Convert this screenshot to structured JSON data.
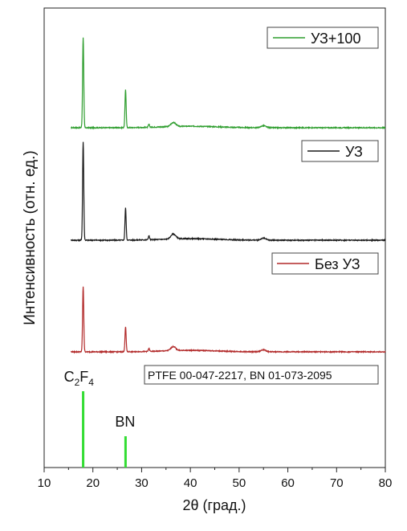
{
  "chart_data": {
    "type": "line",
    "xlabel": "2θ (град.)",
    "ylabel": "Интенсивность (отн. ед.)",
    "xlim": [
      10,
      80
    ],
    "xticks": [
      10,
      20,
      30,
      40,
      50,
      60,
      70,
      80
    ],
    "y_ticks_shown": false,
    "legend_placement": "top-right of each pattern",
    "series": [
      {
        "name": "УЗ+100",
        "color": "#2f9e2f",
        "peaks": [
          [
            18.0,
            90
          ],
          [
            26.7,
            38
          ],
          [
            31.5,
            3
          ],
          [
            36.5,
            4
          ],
          [
            55.0,
            2
          ]
        ]
      },
      {
        "name": "УЗ",
        "color": "#1a1a1a",
        "peaks": [
          [
            18.0,
            98
          ],
          [
            26.7,
            32
          ],
          [
            31.5,
            4
          ],
          [
            36.5,
            5
          ],
          [
            55.0,
            2
          ]
        ]
      },
      {
        "name": "Без УЗ",
        "color": "#b22a2a",
        "peaks": [
          [
            18.0,
            65
          ],
          [
            26.7,
            25
          ],
          [
            31.5,
            3
          ],
          [
            36.5,
            4
          ],
          [
            55.0,
            2
          ]
        ]
      }
    ],
    "reference": {
      "label": "PTFE 00-047-2217, BN 01-073-2095",
      "color": "#33dd33",
      "lines": [
        {
          "x": 18.0,
          "label": "C2F4",
          "label_main": "C",
          "sub1": "2",
          "mid": "F",
          "sub2": "4",
          "height": 1.0
        },
        {
          "x": 26.7,
          "label": "BN",
          "height": 0.41
        }
      ]
    }
  }
}
